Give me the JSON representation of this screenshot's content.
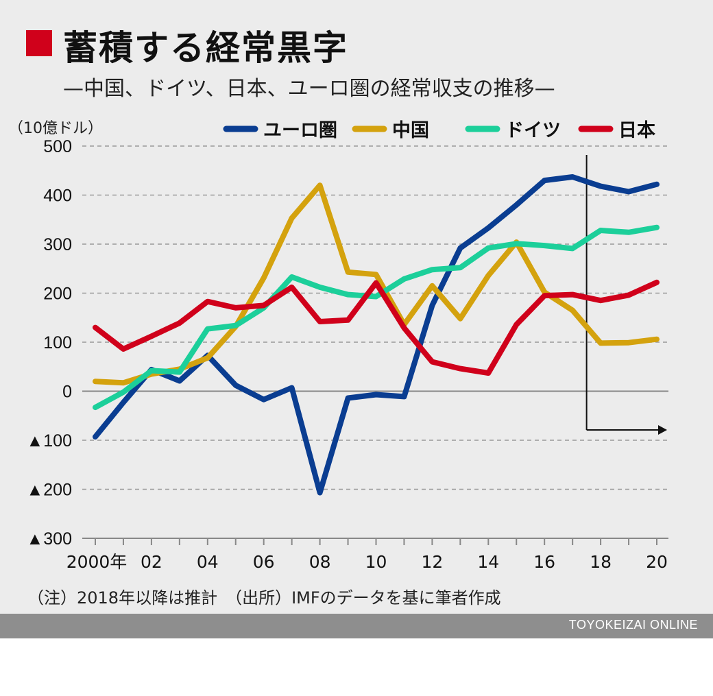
{
  "title": "蓄積する経常黒字",
  "subtitle": "—中国、ドイツ、日本、ユーロ圏の経常収支の推移—",
  "note": "（注）2018年以降は推計　（出所）IMFのデータを基に筆者作成",
  "brand": "TOYOKEIZAI ONLINE",
  "colors": {
    "accent": "#d0011b",
    "grid": "#999999",
    "axis": "#888888",
    "panel": "#ececec"
  },
  "chart_data": {
    "type": "line",
    "ylabel": "（10億ドル）",
    "ylim": [
      -300,
      500
    ],
    "yticks": [
      500,
      400,
      300,
      200,
      100,
      0,
      -100,
      -200,
      -300
    ],
    "ytick_labels": [
      "500",
      "400",
      "300",
      "200",
      "100",
      "0",
      "▲100",
      "▲200",
      "▲300"
    ],
    "x": [
      2000,
      2001,
      2002,
      2003,
      2004,
      2005,
      2006,
      2007,
      2008,
      2009,
      2010,
      2011,
      2012,
      2013,
      2014,
      2015,
      2016,
      2017,
      2018,
      2019,
      2020
    ],
    "xtick_years": [
      2000,
      2002,
      2004,
      2006,
      2008,
      2010,
      2012,
      2014,
      2016,
      2018,
      2020
    ],
    "xtick_labels": [
      "2000年",
      "02",
      "04",
      "06",
      "08",
      "10",
      "12",
      "14",
      "16",
      "18",
      "20"
    ],
    "estimate_from": "2018年以降は推計",
    "grid": true,
    "legend_position": "top-right",
    "series": [
      {
        "name": "ユーロ圏",
        "color": "#0a3d91",
        "values": [
          -93,
          -23,
          44,
          21,
          73,
          12,
          -17,
          7,
          -207,
          -14,
          -7,
          -11,
          175,
          292,
          333,
          380,
          430,
          437,
          418,
          407,
          422
        ]
      },
      {
        "name": "中国",
        "color": "#d4a20e",
        "values": [
          20,
          17,
          35,
          45,
          68,
          132,
          231,
          353,
          420,
          243,
          238,
          136,
          215,
          148,
          236,
          304,
          202,
          165,
          98,
          99,
          106
        ]
      },
      {
        "name": "ドイツ",
        "color": "#1ccf9a",
        "values": [
          -33,
          -2,
          42,
          39,
          127,
          134,
          170,
          233,
          212,
          197,
          193,
          229,
          248,
          252,
          292,
          301,
          297,
          291,
          328,
          324,
          334
        ]
      },
      {
        "name": "日本",
        "color": "#d0011b",
        "values": [
          130,
          86,
          112,
          139,
          183,
          170,
          175,
          212,
          142,
          145,
          221,
          129,
          60,
          46,
          37,
          136,
          195,
          197,
          185,
          196,
          222
        ]
      }
    ]
  }
}
